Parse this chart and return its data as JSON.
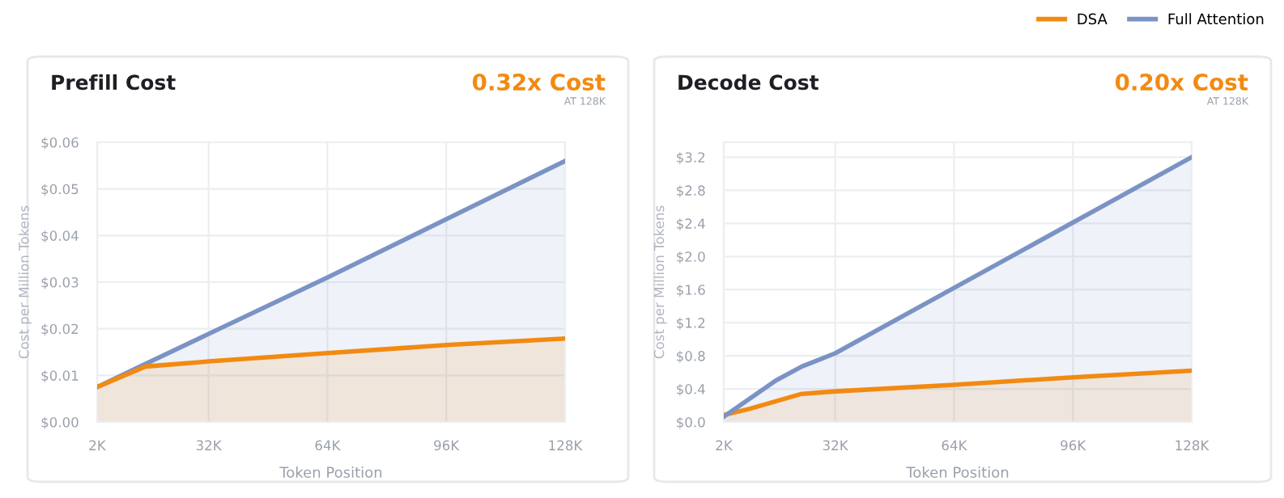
{
  "chart_data": [
    {
      "type": "area",
      "title": "Prefill Cost",
      "annotations": [
        "0.32x Cost",
        "AT 128K"
      ],
      "xlabel": "Token Position",
      "ylabel": "Cost per Million Tokens",
      "xlim": [
        2000,
        128000
      ],
      "xticks": [
        {
          "value": 2000,
          "label": "2K"
        },
        {
          "value": 32000,
          "label": "32K"
        },
        {
          "value": 64000,
          "label": "64K"
        },
        {
          "value": 96000,
          "label": "96K"
        },
        {
          "value": 128000,
          "label": "128K"
        }
      ],
      "ylim": [
        0,
        0.06
      ],
      "yticks": [
        {
          "value": 0,
          "label": "$0.00"
        },
        {
          "value": 0.01,
          "label": "$0.01"
        },
        {
          "value": 0.02,
          "label": "$0.02"
        },
        {
          "value": 0.03,
          "label": "$0.03"
        },
        {
          "value": 0.04,
          "label": "$0.04"
        },
        {
          "value": 0.05,
          "label": "$0.05"
        },
        {
          "value": 0.06,
          "label": "$0.06"
        }
      ],
      "grid": true,
      "series": [
        {
          "color": "#7b93c4",
          "x": [
            2000,
            13000,
            64000,
            128000
          ],
          "values": [
            0.0075,
            0.0117,
            0.031,
            0.056
          ]
        },
        {
          "color": "#f28a12",
          "x": [
            2000,
            15000,
            32000,
            64000,
            96000,
            128000
          ],
          "values": [
            0.0075,
            0.0119,
            0.013,
            0.0148,
            0.0165,
            0.0179
          ]
        }
      ]
    },
    {
      "type": "area",
      "title": "Decode Cost",
      "annotations": [
        "0.20x Cost",
        "AT 128K"
      ],
      "xlabel": "Token Position",
      "ylabel": "Cost per Million Tokens",
      "xlim": [
        2000,
        128000
      ],
      "xticks": [
        {
          "value": 2000,
          "label": "2K"
        },
        {
          "value": 32000,
          "label": "32K"
        },
        {
          "value": 64000,
          "label": "64K"
        },
        {
          "value": 96000,
          "label": "96K"
        },
        {
          "value": 128000,
          "label": "128K"
        }
      ],
      "ylim": [
        0,
        3.38
      ],
      "yticks": [
        {
          "value": 0,
          "label": "$0.0"
        },
        {
          "value": 0.4,
          "label": "$0.4"
        },
        {
          "value": 0.8,
          "label": "$0.8"
        },
        {
          "value": 1.2,
          "label": "$1.2"
        },
        {
          "value": 1.6,
          "label": "$1.6"
        },
        {
          "value": 2.0,
          "label": "$2.0"
        },
        {
          "value": 2.4,
          "label": "$2.4"
        },
        {
          "value": 2.8,
          "label": "$2.8"
        },
        {
          "value": 3.2,
          "label": "$3.2"
        }
      ],
      "grid": true,
      "legend": "top right",
      "series": [
        {
          "name": "DSA",
          "color": "#f28a12",
          "x": [
            2000,
            9000,
            16000,
            23000,
            32000,
            64000,
            96000,
            128000
          ],
          "values": [
            0.085,
            0.16,
            0.25,
            0.34,
            0.37,
            0.45,
            0.54,
            0.62
          ]
        },
        {
          "name": "Full Attention",
          "color": "#7b93c4",
          "x": [
            2000,
            16000,
            23000,
            32000,
            64000,
            96000,
            128000
          ],
          "values": [
            0.065,
            0.5,
            0.67,
            0.83,
            1.62,
            2.41,
            3.2
          ]
        }
      ]
    }
  ]
}
